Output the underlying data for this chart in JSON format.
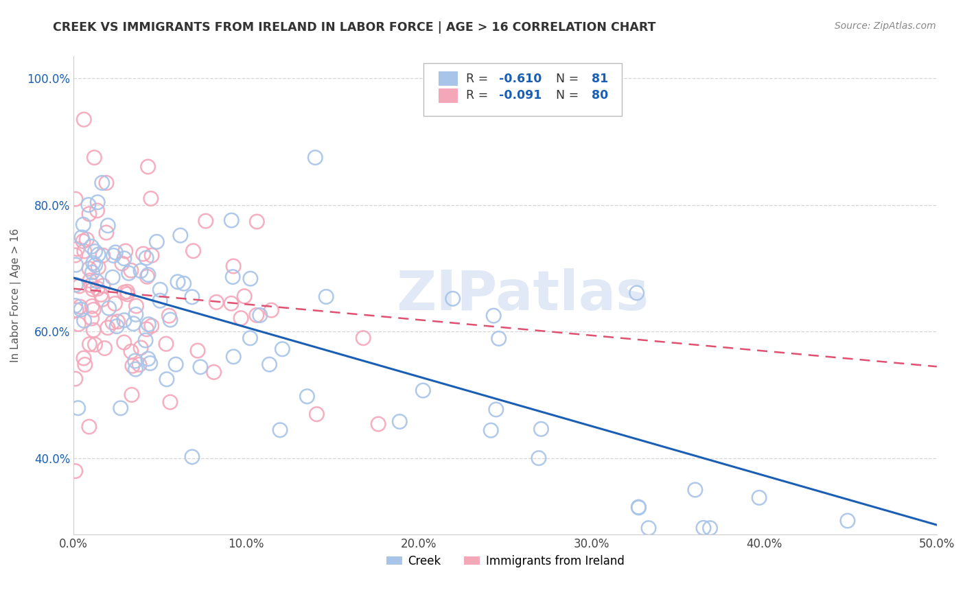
{
  "title": "CREEK VS IMMIGRANTS FROM IRELAND IN LABOR FORCE | AGE > 16 CORRELATION CHART",
  "source": "Source: ZipAtlas.com",
  "ylabel": "In Labor Force | Age > 16",
  "xmin": 0.0,
  "xmax": 0.5,
  "ymin": 0.28,
  "ymax": 1.035,
  "creek_R": -0.61,
  "creek_N": 81,
  "ireland_R": -0.091,
  "ireland_N": 80,
  "creek_color": "#a8c4e8",
  "ireland_color": "#f4a7b9",
  "creek_line_color": "#1a5fb4",
  "ireland_line_color": "#e05070",
  "creek_line_x": [
    0.0,
    0.5
  ],
  "creek_line_y": [
    0.685,
    0.295
  ],
  "ireland_line_x": [
    0.0,
    0.5
  ],
  "ireland_line_y": [
    0.668,
    0.545
  ],
  "watermark": "ZIPatlas",
  "grid_color": "#cccccc",
  "background_color": "#ffffff",
  "yticks": [
    0.4,
    0.6,
    0.8,
    1.0
  ],
  "ytick_labels": [
    "40.0%",
    "60.0%",
    "80.0%",
    "100.0%"
  ],
  "xticks": [
    0.0,
    0.1,
    0.2,
    0.3,
    0.4,
    0.5
  ],
  "xtick_labels": [
    "0.0%",
    "10.0%",
    "20.0%",
    "30.0%",
    "40.0%",
    "50.0%"
  ],
  "r_color": "#1a5fb4",
  "n_color": "#1a5fb4",
  "label_color": "#333333"
}
